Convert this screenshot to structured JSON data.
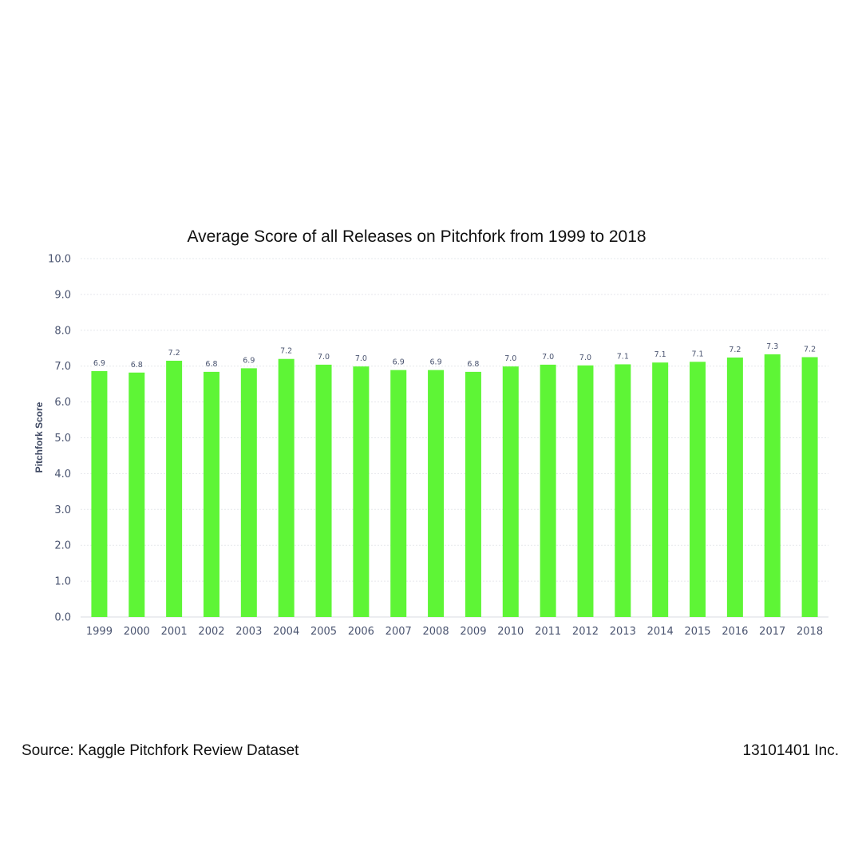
{
  "footer": {
    "source": "Source: Kaggle Pitchfork Review Dataset",
    "company": "13101401 Inc."
  },
  "colors": {
    "bar": "#5ef536",
    "text": "#4a5470",
    "title": "#111111"
  },
  "chart_data": {
    "type": "bar",
    "title": "Average Score of all Releases on Pitchfork from 1999 to 2018",
    "xlabel": "",
    "ylabel": "Pitchfork Score",
    "ylim": [
      0,
      10
    ],
    "yticks": [
      "0.0",
      "1.0",
      "2.0",
      "3.0",
      "4.0",
      "5.0",
      "6.0",
      "7.0",
      "8.0",
      "9.0",
      "10.0"
    ],
    "grid": true,
    "categories": [
      "1999",
      "2000",
      "2001",
      "2002",
      "2003",
      "2004",
      "2005",
      "2006",
      "2007",
      "2008",
      "2009",
      "2010",
      "2011",
      "2012",
      "2013",
      "2014",
      "2015",
      "2016",
      "2017",
      "2018"
    ],
    "values": [
      6.86,
      6.82,
      7.15,
      6.84,
      6.94,
      7.2,
      7.04,
      6.99,
      6.89,
      6.89,
      6.84,
      6.99,
      7.04,
      7.02,
      7.05,
      7.1,
      7.12,
      7.24,
      7.33,
      7.25
    ],
    "labels": [
      "6.9",
      "6.8",
      "7.2",
      "6.8",
      "6.9",
      "7.2",
      "7.0",
      "7.0",
      "6.9",
      "6.9",
      "6.8",
      "7.0",
      "7.0",
      "7.0",
      "7.1",
      "7.1",
      "7.1",
      "7.2",
      "7.3",
      "7.2"
    ]
  }
}
